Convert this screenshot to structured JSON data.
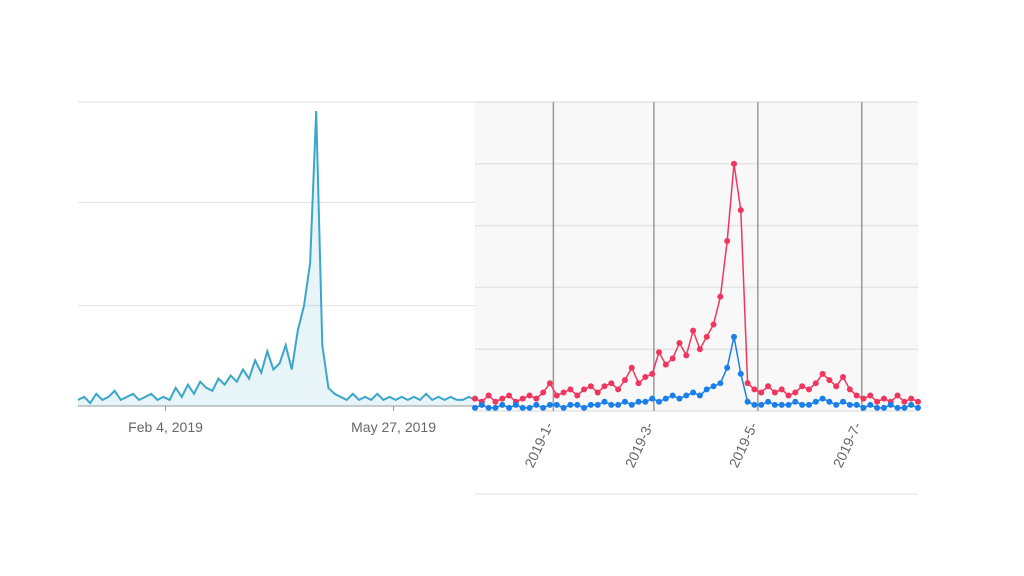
{
  "chart_data": [
    {
      "type": "area",
      "color": "#3aa6c9",
      "x": [
        "2018-12-23",
        "2018-12-26",
        "2018-12-29",
        "2019-01-01",
        "2019-01-04",
        "2019-01-07",
        "2019-01-10",
        "2019-01-13",
        "2019-01-16",
        "2019-01-19",
        "2019-01-22",
        "2019-01-25",
        "2019-01-28",
        "2019-01-31",
        "2019-02-03",
        "2019-02-06",
        "2019-02-09",
        "2019-02-12",
        "2019-02-15",
        "2019-02-18",
        "2019-02-21",
        "2019-02-24",
        "2019-02-27",
        "2019-03-02",
        "2019-03-05",
        "2019-03-08",
        "2019-03-11",
        "2019-03-14",
        "2019-03-17",
        "2019-03-20",
        "2019-03-23",
        "2019-03-26",
        "2019-03-29",
        "2019-04-01",
        "2019-04-04",
        "2019-04-07",
        "2019-04-10",
        "2019-04-13",
        "2019-04-16",
        "2019-04-19",
        "2019-04-22",
        "2019-04-25",
        "2019-04-28",
        "2019-05-01",
        "2019-05-04",
        "2019-05-07",
        "2019-05-10",
        "2019-05-13",
        "2019-05-16",
        "2019-05-19",
        "2019-05-22",
        "2019-05-25",
        "2019-05-28",
        "2019-05-31",
        "2019-06-03",
        "2019-06-06",
        "2019-06-09",
        "2019-06-12",
        "2019-06-15",
        "2019-06-18",
        "2019-06-21",
        "2019-06-24",
        "2019-06-27",
        "2019-06-30",
        "2019-07-03",
        "2019-07-06"
      ],
      "values": [
        2,
        3,
        1,
        4,
        2,
        3,
        5,
        2,
        3,
        4,
        2,
        3,
        4,
        2,
        3,
        2,
        6,
        3,
        7,
        4,
        8,
        6,
        5,
        9,
        7,
        10,
        8,
        12,
        9,
        15,
        11,
        18,
        12,
        14,
        20,
        12,
        25,
        33,
        47,
        97,
        20,
        6,
        4,
        3,
        2,
        4,
        2,
        3,
        2,
        4,
        2,
        3,
        2,
        3,
        2,
        3,
        2,
        4,
        2,
        3,
        2,
        3,
        2,
        2,
        3,
        2
      ],
      "xlim": [
        "2018-12-23",
        "2019-07-06"
      ],
      "xticks": [
        {
          "value": "2019-02-04",
          "label": "Feb 4, 2019"
        },
        {
          "value": "2019-05-27",
          "label": "May 27, 2019"
        }
      ],
      "ylim": [
        0,
        100
      ],
      "yticks": [
        0,
        33,
        67,
        100
      ],
      "grid": true
    },
    {
      "type": "line",
      "x": [
        0,
        4,
        8,
        12,
        16,
        20,
        24,
        28,
        32,
        36,
        40,
        44,
        48,
        52,
        56,
        60,
        64,
        68,
        72,
        76,
        80,
        84,
        88,
        92,
        96,
        100,
        104,
        108,
        112,
        116,
        120,
        124,
        128,
        132,
        136,
        140,
        144,
        148,
        152,
        156,
        160,
        164,
        168,
        172,
        176,
        180,
        184,
        188,
        192,
        196,
        200,
        204,
        208,
        212,
        216,
        220,
        224,
        228,
        232,
        236,
        240,
        244,
        248,
        252,
        256,
        260
      ],
      "series": [
        {
          "color": "#f0365e",
          "values": [
            4,
            3,
            5,
            3,
            4,
            5,
            3,
            4,
            5,
            4,
            6,
            9,
            5,
            6,
            7,
            5,
            7,
            8,
            6,
            8,
            9,
            7,
            10,
            14,
            9,
            11,
            12,
            19,
            15,
            17,
            22,
            18,
            26,
            20,
            24,
            28,
            37,
            55,
            80,
            65,
            9,
            7,
            6,
            8,
            6,
            7,
            5,
            6,
            8,
            7,
            9,
            12,
            10,
            8,
            11,
            7,
            5,
            4,
            5,
            3,
            4,
            3,
            5,
            3,
            4,
            3
          ]
        },
        {
          "color": "#1a7fe8",
          "values": [
            1,
            2,
            1,
            1,
            2,
            1,
            2,
            1,
            1,
            2,
            1,
            2,
            2,
            1,
            2,
            2,
            1,
            2,
            2,
            3,
            2,
            2,
            3,
            2,
            3,
            3,
            4,
            3,
            4,
            5,
            4,
            5,
            6,
            5,
            7,
            8,
            9,
            14,
            24,
            12,
            3,
            2,
            2,
            3,
            2,
            2,
            2,
            3,
            2,
            2,
            3,
            4,
            3,
            2,
            3,
            2,
            2,
            1,
            2,
            1,
            1,
            2,
            1,
            1,
            2,
            1
          ]
        }
      ],
      "xlim": [
        0,
        260
      ],
      "xticks": [
        {
          "value": 46,
          "label": "2019-1-"
        },
        {
          "value": 105,
          "label": "2019-3-"
        },
        {
          "value": 166,
          "label": "2019-5-"
        },
        {
          "value": 227,
          "label": "2019-7-"
        }
      ],
      "ylim": [
        0,
        100
      ],
      "yticks": [
        0,
        20,
        40,
        60,
        80,
        100
      ],
      "grid": true
    }
  ]
}
